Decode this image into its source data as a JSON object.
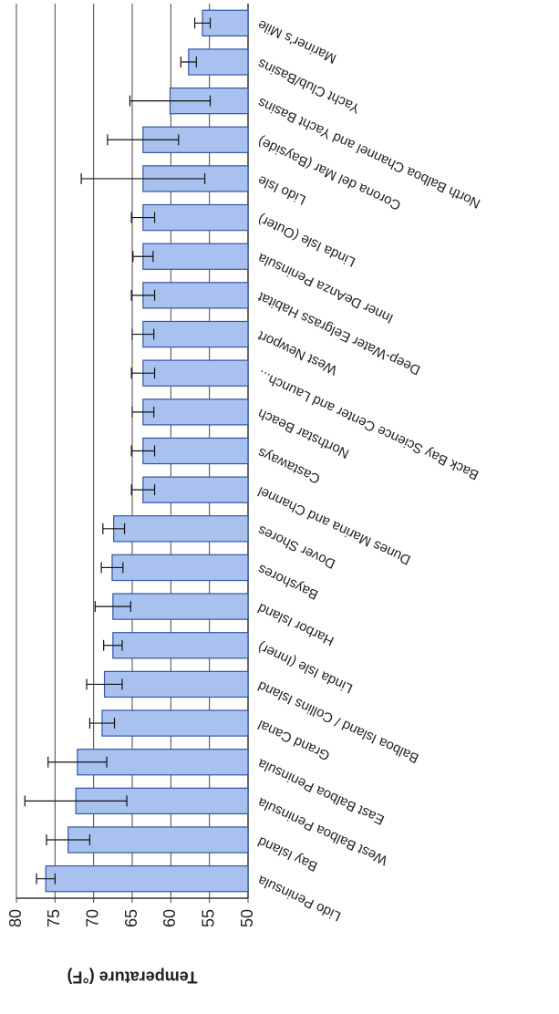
{
  "chart_data": {
    "type": "bar",
    "y_label": "Temperature (°F)",
    "categories": [
      "Lido Peninsula",
      "Bay Island",
      "West Balboa Peninsula",
      "East Balboa Peninsula",
      "Grand Canal",
      "Balboa Island / Collins Island",
      "Linda Isle (Inner)",
      "Harbor Island",
      "Bayshores",
      "Dover Shores",
      "Dunes Marina and Channel",
      "Castaways",
      "Northstar Beach",
      "Back Bay Science Center and Launch...",
      "West Newport",
      "Deep-Water Eelgrass Habitat",
      "Inner DeAnza Peninsula",
      "Linda Isle (Outer)",
      "Lido Isle",
      "Corona del Mar (Bayside)",
      "North Balboa Channel and Yacht Basins",
      "Yacht Club/Basins",
      "Mariner's Mile"
    ],
    "values": [
      76.2,
      73.3,
      72.3,
      72.1,
      68.9,
      68.6,
      67.5,
      67.5,
      67.6,
      67.4,
      63.6,
      63.6,
      63.6,
      63.6,
      63.6,
      63.6,
      63.6,
      63.6,
      63.6,
      63.6,
      60.1,
      57.7,
      55.9
    ],
    "errors": [
      1.2,
      2.8,
      6.6,
      3.8,
      1.6,
      2.3,
      1.2,
      2.3,
      1.4,
      1.4,
      1.5,
      1.5,
      1.4,
      1.5,
      1.4,
      1.5,
      1.3,
      1.5,
      8,
      4.6,
      5.2,
      1,
      1
    ],
    "color": "#a9c1ee",
    "ylim": [
      50,
      80
    ],
    "yticks": [
      50,
      55,
      60,
      65,
      70,
      75,
      80
    ],
    "grid": true
  }
}
